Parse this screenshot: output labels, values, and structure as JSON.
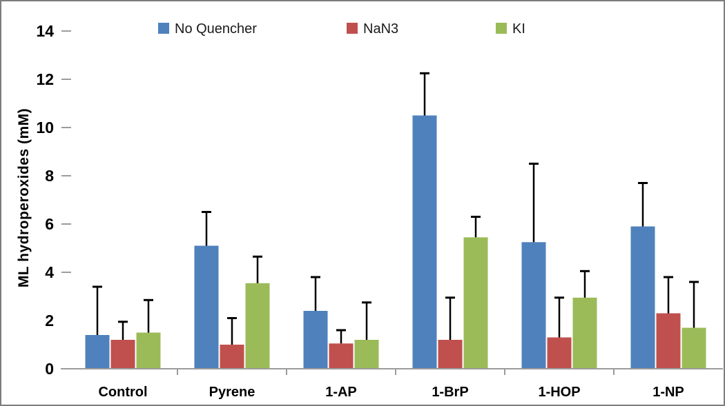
{
  "frame": {
    "background": "#ffffff",
    "border_color": "#7d7d7d"
  },
  "axis": {
    "line_color": "#9b9b9b",
    "error_bar_color": "#000000"
  },
  "chart_data": {
    "type": "bar",
    "title": "",
    "xlabel": "",
    "ylabel": "ML hydroperoxides (mM)",
    "ylim": [
      0,
      14
    ],
    "ytick_values": [
      0,
      2,
      4,
      6,
      8,
      10,
      12,
      14
    ],
    "ytick_labels": [
      "0",
      "2",
      "4",
      "6",
      "8",
      "10",
      "12",
      "14"
    ],
    "grid": false,
    "legend_position": "top",
    "categories": [
      "Control",
      "Pyrene",
      "1-AP",
      "1-BrP",
      "1-HOP",
      "1-NP"
    ],
    "series": [
      {
        "name": "No Quencher",
        "color": "#4F81BD",
        "values": [
          1.4,
          5.1,
          2.4,
          10.5,
          5.25,
          5.9
        ],
        "error_up": [
          2.0,
          1.4,
          1.4,
          1.75,
          3.25,
          1.8
        ]
      },
      {
        "name": "NaN3",
        "color": "#C0504D",
        "values": [
          1.2,
          1.0,
          1.05,
          1.2,
          1.3,
          2.3
        ],
        "error_up": [
          0.75,
          1.1,
          0.55,
          1.75,
          1.65,
          1.5
        ]
      },
      {
        "name": "KI",
        "color": "#9BBB59",
        "values": [
          1.5,
          3.55,
          1.2,
          5.45,
          2.95,
          1.7
        ],
        "error_up": [
          1.35,
          1.1,
          1.55,
          0.85,
          1.1,
          1.9
        ]
      }
    ]
  }
}
